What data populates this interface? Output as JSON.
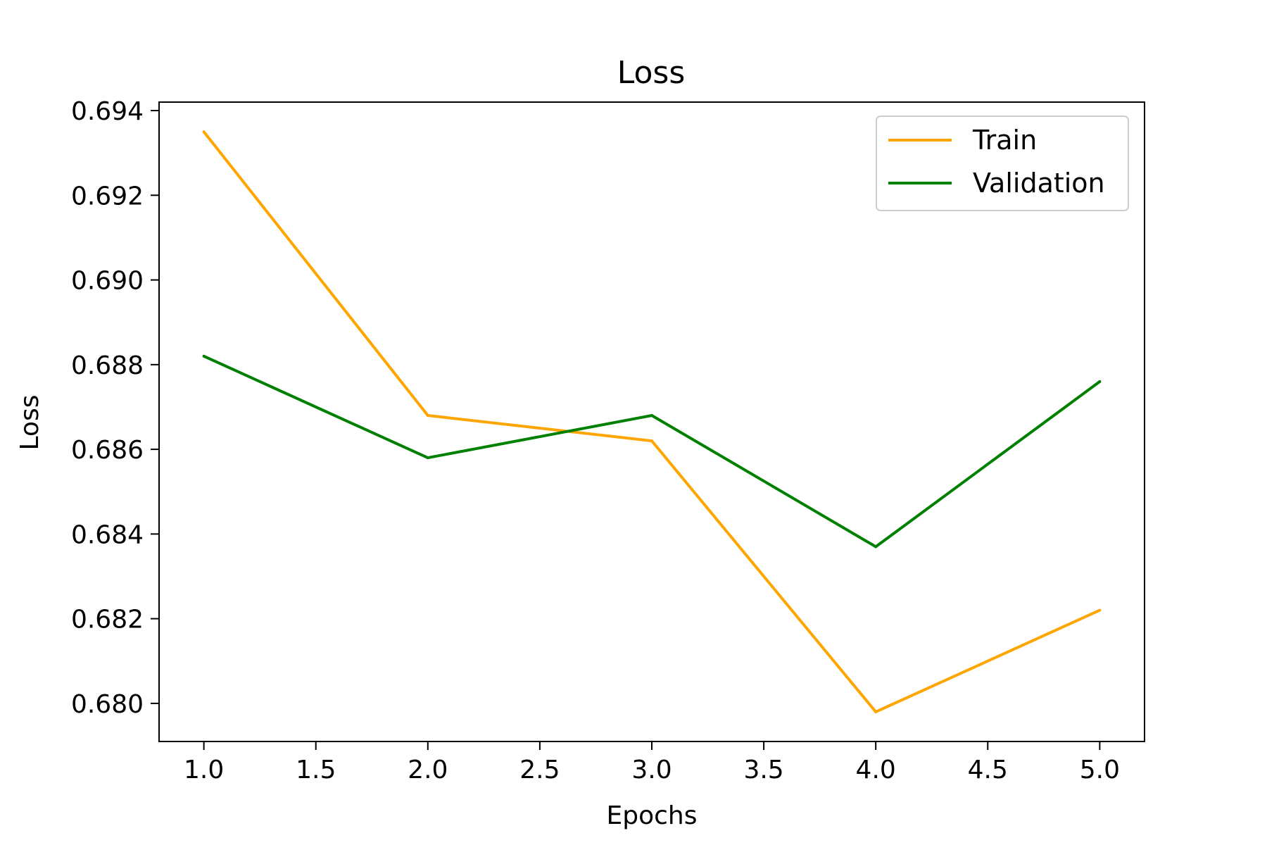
{
  "chart_data": {
    "type": "line",
    "title": "Loss",
    "xlabel": "Epochs",
    "ylabel": "Loss",
    "x": [
      1,
      2,
      3,
      4,
      5
    ],
    "xlim": [
      0.8,
      5.2
    ],
    "ylim": [
      0.6791,
      0.6942
    ],
    "xticks": [
      "1.0",
      "1.5",
      "2.0",
      "2.5",
      "3.0",
      "3.5",
      "4.0",
      "4.5",
      "5.0"
    ],
    "yticks": [
      "0.680",
      "0.682",
      "0.684",
      "0.686",
      "0.688",
      "0.690",
      "0.692",
      "0.694"
    ],
    "grid": false,
    "legend_position": "top-right",
    "series": [
      {
        "name": "Train",
        "color": "#ffa500",
        "values": [
          0.6935,
          0.6868,
          0.6862,
          0.6798,
          0.6822
        ]
      },
      {
        "name": "Validation",
        "color": "#008000",
        "values": [
          0.6882,
          0.6858,
          0.6868,
          0.6837,
          0.6876
        ]
      }
    ]
  }
}
